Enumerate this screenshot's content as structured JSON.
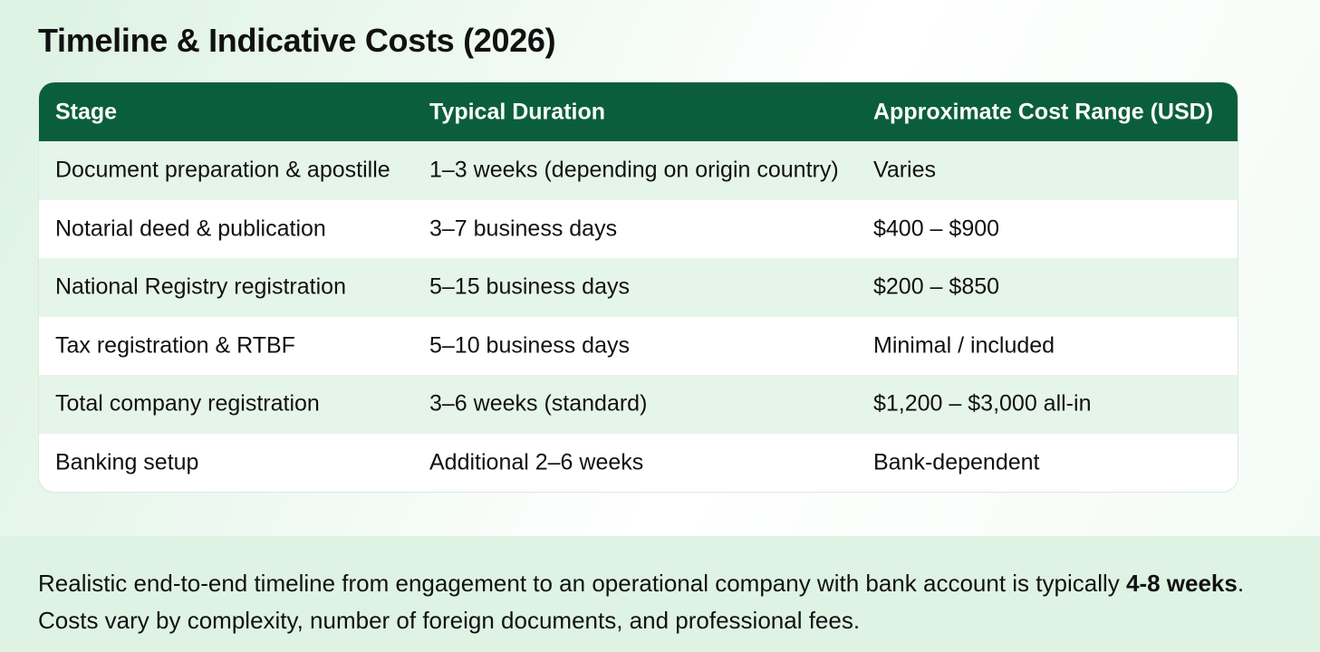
{
  "header": {
    "title": "Timeline & Indicative Costs (2026)"
  },
  "table": {
    "columns": [
      "Stage",
      "Typical Duration",
      "Approximate Cost Range (USD)"
    ],
    "rows": [
      [
        "Document preparation & apostille",
        "1–3 weeks (depending on origin country)",
        "Varies"
      ],
      [
        "Notarial deed & publication",
        "3–7 business days",
        "$400 – $900"
      ],
      [
        "National Registry registration",
        "5–15 business days",
        "$200 – $850"
      ],
      [
        "Tax registration & RTBF",
        "5–10 business days",
        "Minimal / included"
      ],
      [
        "Total company registration",
        "3–6 weeks (standard)",
        "$1,200 – $3,000 all-in"
      ],
      [
        "Banking setup",
        "Additional 2–6 weeks",
        "Bank-dependent"
      ]
    ]
  },
  "note": {
    "before": "Realistic end-to-end timeline from engagement to an operational company with bank account is typically ",
    "bold": "4-8 weeks",
    "after": ". Costs vary by complexity, number of foreign documents, and professional fees."
  }
}
